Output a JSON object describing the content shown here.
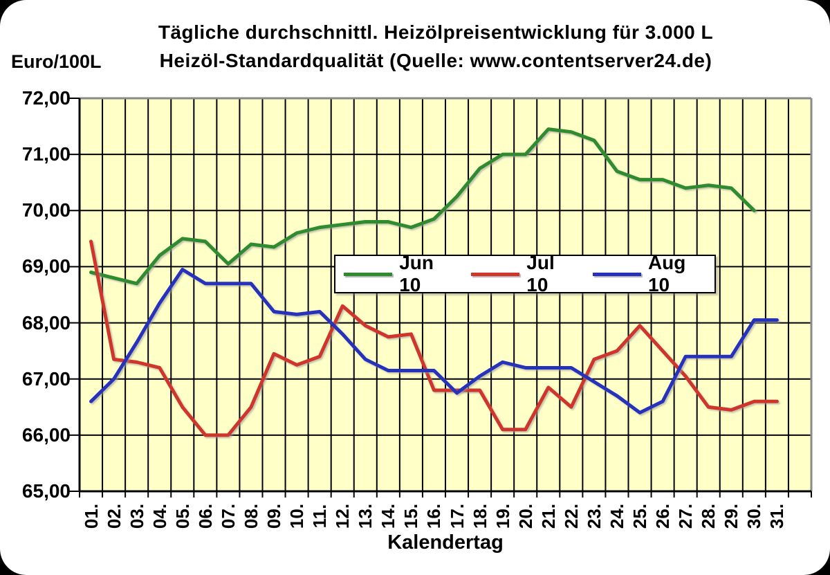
{
  "title": {
    "line1": "Tägliche durchschnittl. Heizölpreisentwicklung für 3.000 L",
    "line2": "Heizöl-Standardqualität (Quelle: www.contentserver24.de)"
  },
  "y_axis": {
    "unit_label": "Euro/100L",
    "tick_labels": [
      "72,00",
      "71,00",
      "70,00",
      "69,00",
      "68,00",
      "67,00",
      "66,00",
      "65,00"
    ],
    "tick_values": [
      72,
      71,
      70,
      69,
      68,
      67,
      66,
      65
    ]
  },
  "x_axis": {
    "title": "Kalendertag",
    "tick_labels": [
      "01.",
      "02.",
      "03.",
      "04.",
      "05.",
      "06.",
      "07.",
      "08.",
      "09.",
      "10.",
      "11.",
      "12.",
      "13.",
      "14.",
      "15.",
      "16.",
      "17.",
      "18.",
      "19.",
      "20.",
      "21.",
      "22.",
      "23.",
      "24.",
      "25.",
      "26.",
      "27.",
      "28.",
      "29.",
      "30.",
      "31."
    ]
  },
  "colors": {
    "plot_background": "#ffffc8",
    "gridline": "#000000",
    "border_light": "#8a8a8a",
    "border_dark": "#000000"
  },
  "chart_data": {
    "type": "line",
    "title": "Tägliche durchschnittl. Heizölpreisentwicklung für 3.000 L Heizöl-Standardqualität (Quelle: www.contentserver24.de)",
    "xlabel": "Kalendertag",
    "ylabel": "Euro/100L",
    "ylim": [
      65,
      72
    ],
    "grid": true,
    "legend_position": "inside-top-center",
    "x": [
      1,
      2,
      3,
      4,
      5,
      6,
      7,
      8,
      9,
      10,
      11,
      12,
      13,
      14,
      15,
      16,
      17,
      18,
      19,
      20,
      21,
      22,
      23,
      24,
      25,
      26,
      27,
      28,
      29,
      30,
      31
    ],
    "series": [
      {
        "name": "Jun 10",
        "color": "#2f8b2f",
        "values": [
          68.9,
          68.8,
          68.7,
          69.2,
          69.5,
          69.45,
          69.05,
          69.4,
          69.35,
          69.6,
          69.7,
          69.75,
          69.8,
          69.8,
          69.7,
          69.85,
          70.25,
          70.75,
          71.0,
          71.0,
          71.45,
          71.4,
          71.25,
          70.7,
          70.55,
          70.55,
          70.4,
          70.45,
          70.4,
          70.0
        ]
      },
      {
        "name": "Jul 10",
        "color": "#cf352b",
        "values": [
          69.45,
          67.35,
          67.3,
          67.2,
          66.5,
          66.0,
          66.0,
          66.5,
          67.45,
          67.25,
          67.4,
          68.3,
          67.95,
          67.75,
          67.8,
          66.8,
          66.8,
          66.8,
          66.1,
          66.1,
          66.85,
          66.5,
          67.35,
          67.5,
          67.95,
          67.5,
          67.05,
          66.5,
          66.45,
          66.6,
          66.6
        ]
      },
      {
        "name": "Aug 10",
        "color": "#2730bb",
        "values": [
          66.6,
          67.0,
          67.65,
          68.35,
          68.95,
          68.7,
          68.7,
          68.7,
          68.2,
          68.15,
          68.2,
          67.8,
          67.35,
          67.15,
          67.15,
          67.15,
          66.75,
          67.05,
          67.3,
          67.2,
          67.2,
          67.2,
          66.95,
          66.7,
          66.4,
          66.6,
          67.4,
          67.4,
          67.4,
          68.05,
          68.05
        ]
      }
    ]
  }
}
